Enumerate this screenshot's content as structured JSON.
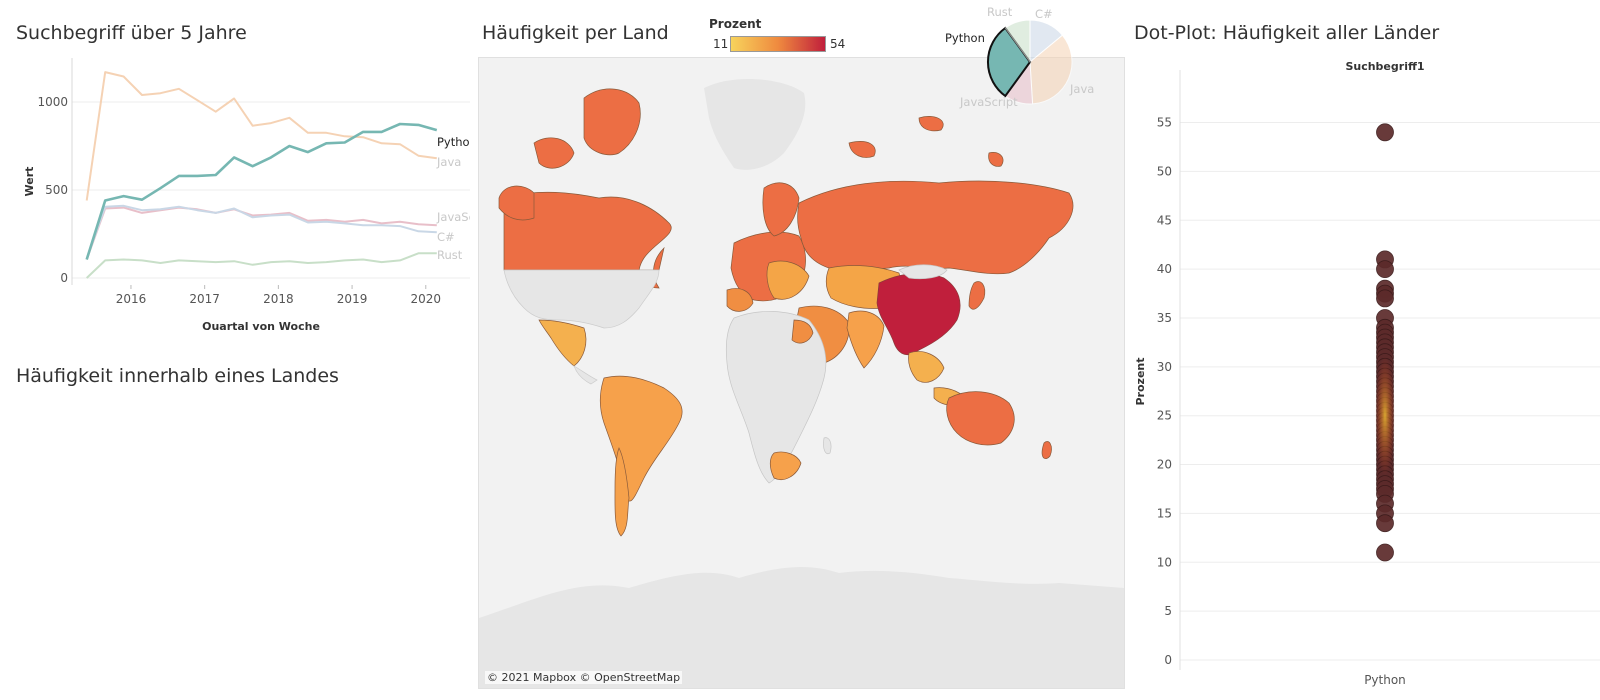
{
  "line_panel": {
    "title": "Suchbegriff über 5 Jahre"
  },
  "country_panel": {
    "title": "Häufigkeit innerhalb eines Landes"
  },
  "map_panel": {
    "title": "Häufigkeit per Land",
    "legend_title": "Prozent",
    "legend_min": "11",
    "legend_max": "54",
    "attribution": "© 2021 Mapbox © OpenStreetMap"
  },
  "dot_panel": {
    "title": "Dot-Plot: Häufigkeit aller Länder"
  },
  "colors": {
    "Python": "#76b7b2",
    "Java": "#f5d2b4",
    "JavaScript": "#e8bfc9",
    "C#": "#c9d7e6",
    "Rust": "#c8dfc8",
    "dot": "#5c2a2a",
    "map_low": "#f7d35c",
    "map_mid": "#ef8a3f",
    "map_high": "#c01f3c"
  },
  "chart_data": [
    {
      "type": "line",
      "xlabel": "Quartal von Woche",
      "ylabel": "Wert",
      "x_ticks": [
        "2016",
        "2017",
        "2018",
        "2019",
        "2020"
      ],
      "y_ticks": [
        0,
        500,
        1000
      ],
      "xlim": [
        2015.3,
        2020.7
      ],
      "ylim": [
        -40,
        1250
      ],
      "x": [
        2015.5,
        2015.75,
        2016.0,
        2016.25,
        2016.5,
        2016.75,
        2017.0,
        2017.25,
        2017.5,
        2017.75,
        2018.0,
        2018.25,
        2018.5,
        2018.75,
        2019.0,
        2019.25,
        2019.5,
        2019.75,
        2020.0,
        2020.25
      ],
      "series": [
        {
          "name": "Java",
          "values": [
            440,
            1170,
            1145,
            1040,
            1050,
            1075,
            1010,
            945,
            1020,
            865,
            880,
            910,
            825,
            825,
            805,
            800,
            765,
            760,
            695,
            680
          ]
        },
        {
          "name": "Python",
          "values": [
            105,
            440,
            465,
            445,
            510,
            580,
            580,
            585,
            685,
            635,
            685,
            750,
            715,
            765,
            770,
            830,
            830,
            875,
            870,
            840
          ]
        },
        {
          "name": "JavaScript",
          "values": [
            105,
            395,
            400,
            370,
            385,
            400,
            390,
            370,
            390,
            355,
            360,
            370,
            325,
            330,
            320,
            330,
            310,
            320,
            305,
            300
          ]
        },
        {
          "name": "C#",
          "values": [
            110,
            405,
            410,
            385,
            390,
            405,
            385,
            370,
            395,
            345,
            355,
            360,
            315,
            320,
            310,
            300,
            300,
            295,
            265,
            260
          ]
        },
        {
          "name": "Rust",
          "values": [
            0,
            100,
            105,
            100,
            85,
            100,
            95,
            90,
            95,
            75,
            90,
            95,
            85,
            90,
            100,
            105,
            90,
            100,
            140,
            140
          ]
        }
      ]
    },
    {
      "type": "pie",
      "categories": [
        "C#",
        "Java",
        "JavaScript",
        "Python",
        "Rust"
      ],
      "values": [
        14,
        35,
        11,
        30,
        10
      ],
      "highlighted": "Python"
    },
    {
      "type": "scatter",
      "title": "Suchbegriff1",
      "xlabel": "Python",
      "ylabel": "Prozent",
      "y_ticks": [
        0,
        5,
        10,
        15,
        20,
        25,
        30,
        35,
        40,
        45,
        50,
        55
      ],
      "ylim": [
        0,
        57
      ],
      "values": [
        54,
        41,
        40,
        38,
        37.5,
        37,
        35,
        34,
        33.5,
        33,
        32.5,
        32,
        31.5,
        31,
        30.5,
        30,
        29.5,
        29,
        28.5,
        28,
        27.5,
        27,
        26.5,
        26,
        25.5,
        25,
        24.5,
        24,
        23.5,
        23,
        22.5,
        22,
        21.5,
        21,
        20.5,
        20,
        19.5,
        19,
        18.5,
        18,
        17.5,
        17,
        16,
        15,
        14,
        11
      ]
    }
  ]
}
